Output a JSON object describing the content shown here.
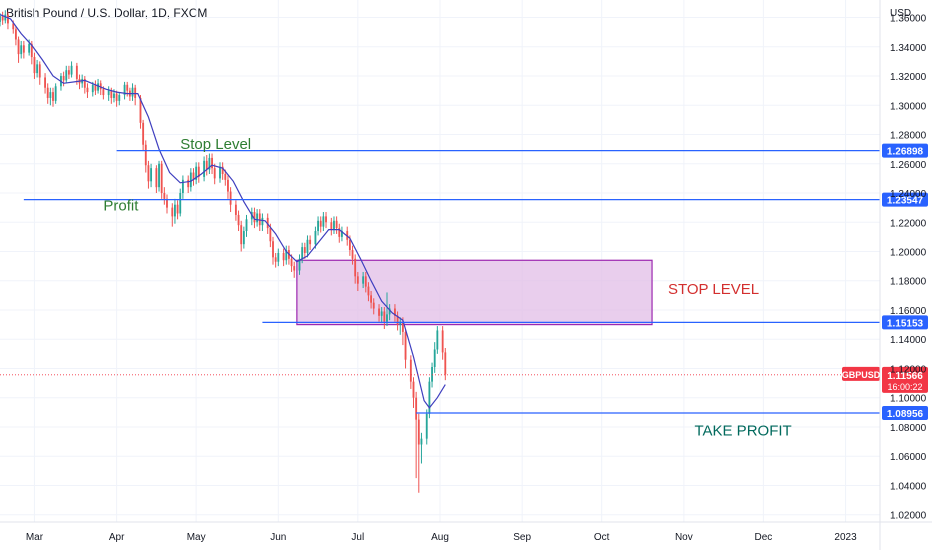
{
  "title": "British Pound / U.S. Dollar, 1D, FXCM",
  "currency": "USD",
  "chart_data": {
    "type": "candlestick",
    "symbol": "GBPUSD",
    "ylim": [
      1.015,
      1.372
    ],
    "y_ticks": [
      "1.36000",
      "1.34000",
      "1.32000",
      "1.30000",
      "1.28000",
      "1.26000",
      "1.24000",
      "1.22000",
      "1.20000",
      "1.18000",
      "1.16000",
      "1.14000",
      "1.12000",
      "1.10000",
      "1.08000",
      "1.06000",
      "1.04000",
      "1.02000"
    ],
    "x_ticks": [
      {
        "label": "Mar",
        "day": 29
      },
      {
        "label": "Apr",
        "day": 60
      },
      {
        "label": "May",
        "day": 90
      },
      {
        "label": "Jun",
        "day": 121
      },
      {
        "label": "Jul",
        "day": 151
      },
      {
        "label": "Aug",
        "day": 182
      },
      {
        "label": "Sep",
        "day": 213
      },
      {
        "label": "Oct",
        "day": 243
      },
      {
        "label": "Nov",
        "day": 274
      },
      {
        "label": "Dec",
        "day": 304
      },
      {
        "label": "2023",
        "day": 335
      }
    ],
    "xlim_days": [
      16,
      348
    ],
    "candles": [
      [
        16,
        1.357,
        1.361,
        1.354,
        1.363
      ],
      [
        17,
        1.361,
        1.358,
        1.355,
        1.364
      ],
      [
        18,
        1.358,
        1.362,
        1.356,
        1.365
      ],
      [
        19,
        1.362,
        1.356,
        1.352,
        1.364
      ],
      [
        21,
        1.356,
        1.352,
        1.349,
        1.358
      ],
      [
        22,
        1.352,
        1.345,
        1.341,
        1.354
      ],
      [
        23,
        1.345,
        1.335,
        1.329,
        1.347
      ],
      [
        24,
        1.335,
        1.341,
        1.332,
        1.344
      ],
      [
        25,
        1.341,
        1.336,
        1.332,
        1.344
      ],
      [
        27,
        1.336,
        1.342,
        1.334,
        1.345
      ],
      [
        28,
        1.342,
        1.333,
        1.328,
        1.344
      ],
      [
        29,
        1.333,
        1.322,
        1.318,
        1.336
      ],
      [
        30,
        1.322,
        1.328,
        1.319,
        1.331
      ],
      [
        31,
        1.328,
        1.319,
        1.314,
        1.33
      ],
      [
        33,
        1.319,
        1.312,
        1.308,
        1.322
      ],
      [
        34,
        1.312,
        1.305,
        1.301,
        1.315
      ],
      [
        35,
        1.305,
        1.309,
        1.3,
        1.312
      ],
      [
        36,
        1.309,
        1.303,
        1.299,
        1.312
      ],
      [
        37,
        1.303,
        1.313,
        1.301,
        1.315
      ],
      [
        39,
        1.313,
        1.32,
        1.31,
        1.322
      ],
      [
        40,
        1.32,
        1.317,
        1.313,
        1.323
      ],
      [
        41,
        1.317,
        1.324,
        1.315,
        1.327
      ],
      [
        42,
        1.324,
        1.321,
        1.318,
        1.327
      ],
      [
        43,
        1.321,
        1.327,
        1.319,
        1.33
      ],
      [
        45,
        1.327,
        1.318,
        1.314,
        1.329
      ],
      [
        46,
        1.318,
        1.315,
        1.311,
        1.321
      ],
      [
        47,
        1.315,
        1.318,
        1.312,
        1.321
      ],
      [
        48,
        1.318,
        1.312,
        1.308,
        1.32
      ],
      [
        49,
        1.312,
        1.309,
        1.305,
        1.315
      ],
      [
        51,
        1.309,
        1.314,
        1.306,
        1.316
      ],
      [
        52,
        1.314,
        1.31,
        1.307,
        1.317
      ],
      [
        53,
        1.31,
        1.315,
        1.308,
        1.318
      ],
      [
        54,
        1.315,
        1.311,
        1.307,
        1.317
      ],
      [
        55,
        1.311,
        1.307,
        1.304,
        1.313
      ],
      [
        57,
        1.307,
        1.31,
        1.303,
        1.313
      ],
      [
        58,
        1.31,
        1.305,
        1.301,
        1.312
      ],
      [
        59,
        1.305,
        1.308,
        1.302,
        1.311
      ],
      [
        60,
        1.308,
        1.303,
        1.299,
        1.31
      ],
      [
        61,
        1.303,
        1.307,
        1.3,
        1.309
      ],
      [
        63,
        1.307,
        1.314,
        1.304,
        1.316
      ],
      [
        64,
        1.314,
        1.31,
        1.306,
        1.316
      ],
      [
        65,
        1.31,
        1.306,
        1.303,
        1.312
      ],
      [
        66,
        1.306,
        1.312,
        1.303,
        1.315
      ],
      [
        67,
        1.312,
        1.305,
        1.3,
        1.314
      ],
      [
        69,
        1.305,
        1.288,
        1.284,
        1.307
      ],
      [
        70,
        1.288,
        1.273,
        1.269,
        1.29
      ],
      [
        71,
        1.273,
        1.259,
        1.254,
        1.276
      ],
      [
        72,
        1.259,
        1.248,
        1.243,
        1.262
      ],
      [
        73,
        1.248,
        1.257,
        1.244,
        1.26
      ],
      [
        75,
        1.257,
        1.244,
        1.24,
        1.259
      ],
      [
        76,
        1.244,
        1.26,
        1.241,
        1.262
      ],
      [
        77,
        1.26,
        1.24,
        1.236,
        1.262
      ],
      [
        78,
        1.24,
        1.236,
        1.232,
        1.244
      ],
      [
        79,
        1.236,
        1.23,
        1.226,
        1.239
      ],
      [
        81,
        1.23,
        1.224,
        1.217,
        1.233
      ],
      [
        82,
        1.224,
        1.232,
        1.219,
        1.236
      ],
      [
        83,
        1.232,
        1.226,
        1.222,
        1.235
      ],
      [
        84,
        1.226,
        1.24,
        1.224,
        1.243
      ],
      [
        85,
        1.24,
        1.249,
        1.236,
        1.252
      ],
      [
        87,
        1.249,
        1.244,
        1.24,
        1.252
      ],
      [
        88,
        1.244,
        1.254,
        1.241,
        1.257
      ],
      [
        89,
        1.254,
        1.249,
        1.245,
        1.257
      ],
      [
        90,
        1.249,
        1.258,
        1.246,
        1.261
      ],
      [
        91,
        1.258,
        1.251,
        1.247,
        1.261
      ],
      [
        93,
        1.251,
        1.262,
        1.248,
        1.265
      ],
      [
        94,
        1.262,
        1.256,
        1.252,
        1.266
      ],
      [
        95,
        1.256,
        1.264,
        1.253,
        1.267
      ],
      [
        96,
        1.264,
        1.257,
        1.253,
        1.267
      ],
      [
        97,
        1.257,
        1.25,
        1.246,
        1.26
      ],
      [
        99,
        1.25,
        1.258,
        1.247,
        1.261
      ],
      [
        100,
        1.258,
        1.253,
        1.249,
        1.261
      ],
      [
        101,
        1.253,
        1.249,
        1.245,
        1.256
      ],
      [
        102,
        1.249,
        1.241,
        1.236,
        1.252
      ],
      [
        103,
        1.241,
        1.232,
        1.227,
        1.244
      ],
      [
        105,
        1.232,
        1.225,
        1.221,
        1.235
      ],
      [
        106,
        1.225,
        1.218,
        1.214,
        1.228
      ],
      [
        107,
        1.218,
        1.205,
        1.2,
        1.221
      ],
      [
        108,
        1.205,
        1.214,
        1.202,
        1.217
      ],
      [
        109,
        1.214,
        1.222,
        1.21,
        1.225
      ],
      [
        111,
        1.222,
        1.227,
        1.218,
        1.23
      ],
      [
        112,
        1.227,
        1.22,
        1.216,
        1.23
      ],
      [
        113,
        1.22,
        1.226,
        1.217,
        1.229
      ],
      [
        114,
        1.226,
        1.218,
        1.214,
        1.229
      ],
      [
        115,
        1.218,
        1.223,
        1.214,
        1.226
      ],
      [
        117,
        1.223,
        1.216,
        1.212,
        1.226
      ],
      [
        118,
        1.216,
        1.207,
        1.203,
        1.219
      ],
      [
        119,
        1.207,
        1.196,
        1.191,
        1.21
      ],
      [
        120,
        1.196,
        1.193,
        1.189,
        1.199
      ],
      [
        121,
        1.193,
        1.199,
        1.19,
        1.202
      ],
      [
        123,
        1.199,
        1.194,
        1.19,
        1.202
      ],
      [
        124,
        1.194,
        1.201,
        1.191,
        1.204
      ],
      [
        125,
        1.201,
        1.195,
        1.191,
        1.204
      ],
      [
        126,
        1.195,
        1.19,
        1.186,
        1.198
      ],
      [
        127,
        1.19,
        1.187,
        1.182,
        1.193
      ],
      [
        129,
        1.187,
        1.195,
        1.184,
        1.198
      ],
      [
        130,
        1.195,
        1.203,
        1.192,
        1.206
      ],
      [
        131,
        1.203,
        1.199,
        1.195,
        1.206
      ],
      [
        132,
        1.199,
        1.208,
        1.196,
        1.211
      ],
      [
        133,
        1.208,
        1.205,
        1.201,
        1.211
      ],
      [
        135,
        1.205,
        1.214,
        1.202,
        1.217
      ],
      [
        136,
        1.214,
        1.221,
        1.211,
        1.224
      ],
      [
        137,
        1.221,
        1.217,
        1.213,
        1.224
      ],
      [
        138,
        1.217,
        1.224,
        1.214,
        1.227
      ],
      [
        139,
        1.224,
        1.22,
        1.216,
        1.227
      ],
      [
        141,
        1.22,
        1.215,
        1.211,
        1.223
      ],
      [
        142,
        1.215,
        1.221,
        1.212,
        1.224
      ],
      [
        143,
        1.221,
        1.216,
        1.212,
        1.224
      ],
      [
        144,
        1.216,
        1.21,
        1.206,
        1.219
      ],
      [
        145,
        1.21,
        1.214,
        1.207,
        1.217
      ],
      [
        147,
        1.214,
        1.208,
        1.204,
        1.217
      ],
      [
        148,
        1.208,
        1.201,
        1.197,
        1.211
      ],
      [
        149,
        1.201,
        1.195,
        1.191,
        1.204
      ],
      [
        150,
        1.195,
        1.183,
        1.178,
        1.198
      ],
      [
        151,
        1.183,
        1.178,
        1.173,
        1.186
      ],
      [
        153,
        1.178,
        1.183,
        1.175,
        1.186
      ],
      [
        154,
        1.183,
        1.176,
        1.172,
        1.186
      ],
      [
        155,
        1.176,
        1.17,
        1.166,
        1.179
      ],
      [
        156,
        1.17,
        1.165,
        1.161,
        1.173
      ],
      [
        157,
        1.165,
        1.161,
        1.157,
        1.168
      ],
      [
        159,
        1.161,
        1.156,
        1.152,
        1.164
      ],
      [
        160,
        1.156,
        1.159,
        1.151,
        1.162
      ],
      [
        161,
        1.159,
        1.152,
        1.147,
        1.162
      ],
      [
        162,
        1.152,
        1.157,
        1.149,
        1.172
      ],
      [
        163,
        1.157,
        1.161,
        1.153,
        1.164
      ],
      [
        165,
        1.161,
        1.156,
        1.152,
        1.164
      ],
      [
        166,
        1.156,
        1.15,
        1.146,
        1.159
      ],
      [
        167,
        1.15,
        1.152,
        1.143,
        1.155
      ],
      [
        168,
        1.152,
        1.145,
        1.136,
        1.155
      ],
      [
        169,
        1.145,
        1.126,
        1.12,
        1.147
      ],
      [
        171,
        1.126,
        1.111,
        1.106,
        1.129
      ],
      [
        172,
        1.111,
        1.1,
        1.093,
        1.114
      ],
      [
        173,
        1.1,
        1.085,
        1.045,
        1.104
      ],
      [
        174,
        1.085,
        1.068,
        1.035,
        1.089
      ],
      [
        175,
        1.068,
        1.072,
        1.055,
        1.076
      ],
      [
        177,
        1.072,
        1.089,
        1.068,
        1.092
      ],
      [
        178,
        1.089,
        1.111,
        1.086,
        1.114
      ],
      [
        179,
        1.111,
        1.121,
        1.107,
        1.124
      ],
      [
        180,
        1.121,
        1.133,
        1.117,
        1.138
      ],
      [
        181,
        1.133,
        1.146,
        1.13,
        1.149
      ],
      [
        183,
        1.146,
        1.131,
        1.126,
        1.149
      ],
      [
        184,
        1.131,
        1.116,
        1.112,
        1.134
      ]
    ],
    "ma": [
      [
        16,
        1.362
      ],
      [
        20,
        1.359
      ],
      [
        24,
        1.349
      ],
      [
        28,
        1.341
      ],
      [
        32,
        1.331
      ],
      [
        36,
        1.32
      ],
      [
        40,
        1.315
      ],
      [
        44,
        1.316
      ],
      [
        48,
        1.317
      ],
      [
        52,
        1.314
      ],
      [
        56,
        1.311
      ],
      [
        60,
        1.309
      ],
      [
        64,
        1.308
      ],
      [
        68,
        1.308
      ],
      [
        72,
        1.292
      ],
      [
        76,
        1.27
      ],
      [
        80,
        1.254
      ],
      [
        84,
        1.247
      ],
      [
        88,
        1.248
      ],
      [
        92,
        1.253
      ],
      [
        96,
        1.259
      ],
      [
        100,
        1.257
      ],
      [
        104,
        1.248
      ],
      [
        108,
        1.234
      ],
      [
        112,
        1.222
      ],
      [
        116,
        1.221
      ],
      [
        120,
        1.212
      ],
      [
        124,
        1.2
      ],
      [
        128,
        1.193
      ],
      [
        132,
        1.197
      ],
      [
        136,
        1.206
      ],
      [
        140,
        1.215
      ],
      [
        144,
        1.215
      ],
      [
        148,
        1.209
      ],
      [
        152,
        1.195
      ],
      [
        156,
        1.18
      ],
      [
        160,
        1.166
      ],
      [
        164,
        1.158
      ],
      [
        168,
        1.153
      ],
      [
        172,
        1.128
      ],
      [
        176,
        1.098
      ],
      [
        178,
        1.093
      ],
      [
        181,
        1.1
      ],
      [
        184,
        1.109
      ]
    ],
    "levels": [
      {
        "price": 1.26898,
        "label": "1.26898",
        "start_day": 60
      },
      {
        "price": 1.23547,
        "label": "1.23547",
        "start_day": 25
      },
      {
        "price": 1.15153,
        "label": "1.15153",
        "start_day": 115
      },
      {
        "price": 1.08956,
        "label": "1.08956",
        "start_day": 173
      }
    ],
    "zone": {
      "start_day": 128,
      "end_day": 262,
      "top": 1.194,
      "bottom": 1.15
    },
    "last_price": {
      "symbol": "GBPUSD",
      "price": "1.11566",
      "countdown": "16:00:22",
      "value": 1.11566
    },
    "annotations": [
      {
        "text": "Stop Level",
        "day": 84,
        "price": 1.27,
        "color": "#2e7d32"
      },
      {
        "text": "Profit",
        "day": 55,
        "price": 1.228,
        "color": "#2e7d32"
      },
      {
        "text": "STOP LEVEL",
        "day": 268,
        "price": 1.171,
        "color": "#d32f2f"
      },
      {
        "text": "TAKE PROFIT",
        "day": 278,
        "price": 1.074,
        "color": "#00695c"
      }
    ],
    "colors": {
      "up": "#26a69a",
      "down": "#ef5350",
      "ma": "#3f3fbf",
      "level": "#2962ff",
      "zone_fill": "#e1bee7",
      "zone_stroke": "#9c27b0",
      "grid": "#f0f3fa",
      "axis_text": "#131722",
      "price_tag": "#f23645"
    }
  }
}
